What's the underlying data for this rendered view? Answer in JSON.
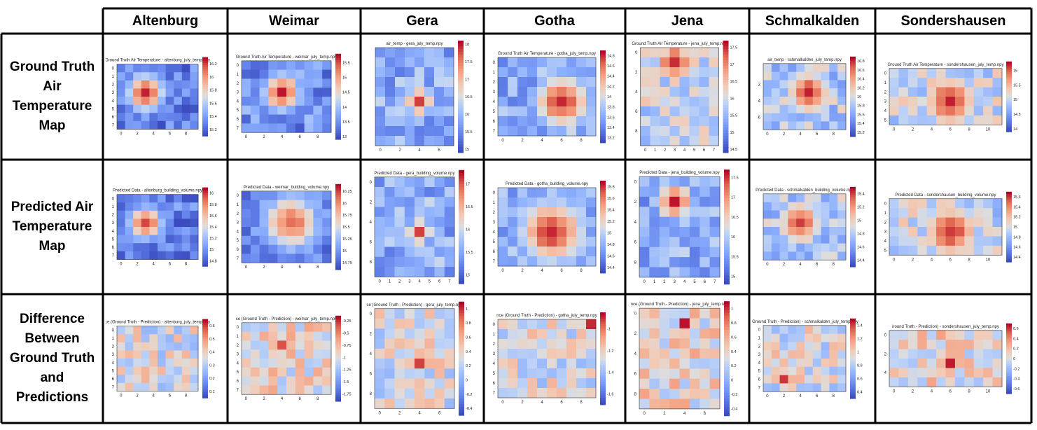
{
  "columns": [
    "Altenburg",
    "Weimar",
    "Gera",
    "Gotha",
    "Jena",
    "Schmalkalden",
    "Sondershausen"
  ],
  "rows": [
    {
      "label": "Ground Truth\nAir\nTemperature\nMap"
    },
    {
      "label": "Predicted Air\nTemperature\nMap"
    },
    {
      "label": "Difference\nBetween\nGround Truth\nand\nPredictions"
    }
  ],
  "colors": {
    "cold": "#3b4cc0",
    "mid": "#dddddd",
    "hot": "#b40426",
    "border": "#000000"
  },
  "chart_data": [
    {
      "type": "heatmap",
      "city": "Altenburg",
      "row": "gt",
      "title": "Ground Truth Air Temperature - altenburg_july_temp.npy",
      "nx": 10,
      "ny": 8,
      "xticks": [
        0,
        2,
        4,
        6,
        8
      ],
      "yticks": [
        0,
        1,
        2,
        3,
        4,
        5,
        6,
        7
      ],
      "cbar_ticks": [
        15.2,
        15.4,
        15.6,
        15.8,
        16.0,
        16.2
      ],
      "vmin": 15.1,
      "vmax": 16.3,
      "seed": 1,
      "hotspots": [
        [
          3,
          3,
          0.95,
          1.6
        ]
      ],
      "base": 0.12
    },
    {
      "type": "heatmap",
      "city": "Weimar",
      "row": "gt",
      "title": "Ground Truth Air Temperature - weimar_july_temp.npy",
      "nx": 10,
      "ny": 8,
      "xticks": [
        0,
        2,
        4,
        6,
        8
      ],
      "yticks": [
        0,
        1,
        2,
        3,
        4,
        5,
        6,
        7
      ],
      "cbar_ticks": [
        13.0,
        13.5,
        14.0,
        14.5,
        15.0,
        15.5
      ],
      "vmin": 12.9,
      "vmax": 15.8,
      "seed": 2,
      "hotspots": [
        [
          4,
          3,
          0.95,
          1.5
        ]
      ],
      "base": 0.2
    },
    {
      "type": "heatmap",
      "city": "Gera",
      "row": "gt",
      "title": "air_temp - gera_july_temp.npy",
      "nx": 8,
      "ny": 10,
      "xticks": [
        0,
        2,
        4,
        6
      ],
      "yticks": [],
      "cbar_ticks": [
        15.0,
        15.5,
        16.0,
        16.5,
        17.0,
        17.5,
        18.0
      ],
      "vmin": 14.9,
      "vmax": 18.1,
      "seed": 3,
      "hotspots": [
        [
          4,
          5,
          0.95,
          1.0
        ]
      ],
      "base": 0.3
    },
    {
      "type": "heatmap",
      "city": "Gotha",
      "row": "gt",
      "title": "Ground Truth Air Temperature - gotha_july_temp.npy",
      "nx": 10,
      "ny": 8,
      "xticks": [
        0,
        2,
        4,
        6,
        8
      ],
      "yticks": [
        0,
        1,
        2,
        3,
        4,
        5,
        6,
        7
      ],
      "cbar_ticks": [
        13.2,
        13.4,
        13.6,
        13.8,
        14.0,
        14.2,
        14.4,
        14.6,
        14.8
      ],
      "vmin": 13.1,
      "vmax": 14.9,
      "seed": 4,
      "hotspots": [
        [
          6,
          4,
          0.95,
          2.0
        ]
      ],
      "base": 0.3
    },
    {
      "type": "heatmap",
      "city": "Jena",
      "row": "gt",
      "title": "Ground Truth Air Temperature - jena_july_temp.npy",
      "nx": 8,
      "ny": 10,
      "xticks": [
        0,
        1,
        2,
        3,
        4,
        5,
        6,
        7
      ],
      "yticks": [
        0,
        2,
        4,
        6,
        8
      ],
      "cbar_ticks": [
        14.5,
        15.0,
        15.5,
        16.0,
        16.5,
        17.0,
        17.5
      ],
      "vmin": 14.4,
      "vmax": 17.7,
      "seed": 5,
      "hotspots": [
        [
          3,
          1,
          0.95,
          1.5
        ]
      ],
      "base": 0.45
    },
    {
      "type": "heatmap",
      "city": "Schmalkalden",
      "row": "gt",
      "title": "air_temp - schmalkalden_july_temp.npy",
      "nx": 10,
      "ny": 8,
      "xticks": [
        0,
        2,
        4,
        6,
        8
      ],
      "yticks": [
        2,
        4,
        6
      ],
      "cbar_ticks": [
        15.2,
        15.4,
        15.6,
        15.8,
        16.0,
        16.2,
        16.4,
        16.6,
        16.8
      ],
      "vmin": 15.1,
      "vmax": 16.9,
      "seed": 6,
      "hotspots": [
        [
          5,
          3,
          0.95,
          2.0
        ]
      ],
      "base": 0.4
    },
    {
      "type": "heatmap",
      "city": "Sondershausen",
      "row": "gt",
      "title": "Ground Truth Air Temperature - sondershausen_july_temp.npy",
      "nx": 12,
      "ny": 6,
      "xticks": [
        0,
        2,
        4,
        6,
        8,
        10
      ],
      "yticks": [
        0,
        1,
        2,
        3,
        4,
        5
      ],
      "cbar_ticks": [
        14.0,
        14.5,
        15.0,
        15.5,
        16.0
      ],
      "vmin": 13.9,
      "vmax": 16.3,
      "seed": 7,
      "hotspots": [
        [
          6,
          3,
          0.95,
          2.2
        ]
      ],
      "base": 0.45
    },
    {
      "type": "heatmap",
      "city": "Altenburg",
      "row": "pred",
      "title": "Predicted Data - altenburg_building_volume.npy",
      "nx": 10,
      "ny": 8,
      "xticks": [
        0,
        2,
        4,
        6,
        8
      ],
      "yticks": [
        0,
        1,
        2,
        3,
        4,
        5,
        6,
        7
      ],
      "cbar_ticks": [
        14.8,
        15.0,
        15.2,
        15.4,
        15.6,
        15.8,
        16.0
      ],
      "vmin": 14.7,
      "vmax": 16.1,
      "seed": 8,
      "hotspots": [
        [
          3,
          3,
          0.95,
          1.4
        ]
      ],
      "base": 0.15
    },
    {
      "type": "heatmap",
      "city": "Weimar",
      "row": "pred",
      "title": "Predicted Data - weimar_building_volume.npy",
      "nx": 10,
      "ny": 8,
      "xticks": [
        0,
        2,
        4,
        6,
        8
      ],
      "yticks": [
        0,
        1,
        2,
        3,
        4,
        5,
        6,
        7
      ],
      "cbar_ticks": [
        14.75,
        15.0,
        15.25,
        15.5,
        15.75,
        16.0,
        16.25
      ],
      "vmin": 14.6,
      "vmax": 16.4,
      "seed": 9,
      "hotspots": [
        [
          5,
          3,
          0.85,
          2.2
        ]
      ],
      "base": 0.15
    },
    {
      "type": "heatmap",
      "city": "Gera",
      "row": "pred",
      "title": "Predicted Data - gera_building_volume.npy",
      "nx": 8,
      "ny": 10,
      "xticks": [
        0,
        1,
        2,
        3,
        4,
        5,
        6,
        7
      ],
      "yticks": [
        0,
        2,
        4,
        6,
        8
      ],
      "cbar_ticks": [
        15.0,
        15.5,
        16.0,
        16.5,
        17.0
      ],
      "vmin": 14.8,
      "vmax": 17.3,
      "seed": 10,
      "hotspots": [
        [
          4,
          5,
          0.95,
          0.9
        ]
      ],
      "base": 0.3
    },
    {
      "type": "heatmap",
      "city": "Gotha",
      "row": "pred",
      "title": "Predicted Data - gotha_building_volume.npy",
      "nx": 10,
      "ny": 8,
      "xticks": [
        0,
        2,
        4,
        6,
        8
      ],
      "yticks": [
        0,
        1,
        2,
        3,
        4,
        5,
        6,
        7
      ],
      "cbar_ticks": [
        14.4,
        14.6,
        14.8,
        15.0,
        15.2,
        15.4,
        15.6,
        15.8
      ],
      "vmin": 14.3,
      "vmax": 15.9,
      "seed": 11,
      "hotspots": [
        [
          5,
          4,
          0.95,
          2.4
        ]
      ],
      "base": 0.3
    },
    {
      "type": "heatmap",
      "city": "Jena",
      "row": "pred",
      "title": "Predicted Data - jena_building_volume.npy",
      "nx": 8,
      "ny": 10,
      "xticks": [
        0,
        1,
        2,
        3,
        4,
        5,
        6,
        7
      ],
      "yticks": [
        0,
        2,
        4,
        6,
        8
      ],
      "cbar_ticks": [
        15.0,
        15.5,
        16.0,
        16.5,
        17.0,
        17.5
      ],
      "vmin": 14.8,
      "vmax": 17.7,
      "seed": 12,
      "hotspots": [
        [
          3,
          2,
          0.95,
          1.3
        ]
      ],
      "base": 0.3
    },
    {
      "type": "heatmap",
      "city": "Schmalkalden",
      "row": "pred",
      "title": "Predicted Data - schmalkalden_building_volume.npy",
      "nx": 10,
      "ny": 8,
      "xticks": [
        0,
        2,
        4,
        6,
        8
      ],
      "yticks": [],
      "cbar_ticks": [
        14.4,
        14.6,
        14.8,
        15.0,
        15.2,
        15.4
      ],
      "vmin": 14.3,
      "vmax": 15.5,
      "seed": 13,
      "hotspots": [
        [
          4,
          3,
          0.9,
          2.0
        ]
      ],
      "base": 0.4
    },
    {
      "type": "heatmap",
      "city": "Sondershausen",
      "row": "pred",
      "title": "Predicted Data - sondershausen_building_volume.npy",
      "nx": 12,
      "ny": 6,
      "xticks": [
        0,
        2,
        4,
        6,
        8,
        10
      ],
      "yticks": [
        0,
        1,
        2,
        3,
        4,
        5
      ],
      "cbar_ticks": [
        14.4,
        14.6,
        14.8,
        15.0,
        15.2,
        15.4,
        15.6
      ],
      "vmin": 14.3,
      "vmax": 15.7,
      "seed": 14,
      "hotspots": [
        [
          6,
          3,
          0.95,
          2.2
        ]
      ],
      "base": 0.45
    },
    {
      "type": "heatmap",
      "city": "Altenburg",
      "row": "diff",
      "title": "ce (Ground Truth - Prediction) - altenburg_july_temp.npy",
      "nx": 10,
      "ny": 8,
      "xticks": [
        0,
        2,
        4,
        6,
        8
      ],
      "yticks": [
        0,
        1,
        2,
        3,
        4,
        5,
        6,
        7
      ],
      "cbar_ticks": [
        0.1,
        0.2,
        0.3,
        0.4,
        0.5,
        0.6
      ],
      "vmin": 0.05,
      "vmax": 0.65,
      "seed": 15,
      "hotspots": [],
      "base": 0.5
    },
    {
      "type": "heatmap",
      "city": "Weimar",
      "row": "diff",
      "title": "ce (Ground Truth - Prediction) - weimar_july_temp.npy",
      "nx": 10,
      "ny": 8,
      "xticks": [
        0,
        2,
        4,
        6,
        8
      ],
      "yticks": [
        0,
        1,
        2,
        3,
        4,
        5,
        6,
        7
      ],
      "cbar_ticks": [
        -1.75,
        -1.5,
        -1.25,
        -1.0,
        -0.75,
        -0.5,
        -0.25
      ],
      "vmin": -1.9,
      "vmax": -0.15,
      "seed": 16,
      "hotspots": [
        [
          4,
          2,
          0.9,
          1.0
        ]
      ],
      "base": 0.55
    },
    {
      "type": "heatmap",
      "city": "Gera",
      "row": "diff",
      "title": "ce (Ground Truth - Prediction) - gera_july_temp.npy",
      "nx": 8,
      "ny": 10,
      "xticks": [
        0,
        2,
        4,
        6
      ],
      "yticks": [
        0,
        2,
        4,
        6,
        8
      ],
      "cbar_ticks": [
        -0.4,
        -0.2,
        0.0,
        0.2,
        0.4,
        0.6,
        0.8,
        1.0
      ],
      "vmin": -0.5,
      "vmax": 1.1,
      "seed": 17,
      "hotspots": [
        [
          4,
          5,
          0.95,
          0.8
        ]
      ],
      "base": 0.5
    },
    {
      "type": "heatmap",
      "city": "Gotha",
      "row": "diff",
      "title": "nce (Ground Truth - Prediction) - gotha_july_temp.npy",
      "nx": 10,
      "ny": 8,
      "xticks": [
        0,
        2,
        4,
        6,
        8
      ],
      "yticks": [
        0,
        1,
        2,
        3,
        4,
        5,
        6,
        7
      ],
      "cbar_ticks": [
        -1.6,
        -1.4,
        -1.2,
        -1.0
      ],
      "vmin": -1.7,
      "vmax": -0.85,
      "seed": 18,
      "hotspots": [
        [
          9,
          0,
          0.95,
          0.8
        ]
      ],
      "base": 0.5
    },
    {
      "type": "heatmap",
      "city": "Jena",
      "row": "diff",
      "title": "nce (Ground Truth - Prediction) - jena_july_temp.npy",
      "nx": 8,
      "ny": 10,
      "xticks": [
        0,
        2,
        4,
        6
      ],
      "yticks": [
        0,
        2,
        4,
        6,
        8
      ],
      "cbar_ticks": [
        -0.4,
        -0.2,
        0.0,
        0.2,
        0.4,
        0.6,
        0.8,
        1.0
      ],
      "vmin": -0.5,
      "vmax": 1.1,
      "seed": 19,
      "hotspots": [
        [
          4,
          1,
          0.95,
          0.8
        ]
      ],
      "base": 0.55
    },
    {
      "type": "heatmap",
      "city": "Schmalkalden",
      "row": "diff",
      "title": "(Ground Truth - Prediction) - schmalkalden_july_temp.npy",
      "nx": 10,
      "ny": 8,
      "xticks": [
        0,
        2,
        4,
        6,
        8
      ],
      "yticks": [
        0,
        1,
        2,
        3,
        4,
        5,
        6,
        7
      ],
      "cbar_ticks": [
        0.4,
        0.6,
        0.8,
        1.0,
        1.2,
        1.4
      ],
      "vmin": 0.3,
      "vmax": 1.5,
      "seed": 20,
      "hotspots": [
        [
          2,
          6,
          0.9,
          1.0
        ]
      ],
      "base": 0.5
    },
    {
      "type": "heatmap",
      "city": "Sondershausen",
      "row": "diff",
      "title": "iround Truth - Prediction) - sondershausen_july_temp.npy",
      "nx": 12,
      "ny": 6,
      "xticks": [
        0,
        2,
        4,
        6,
        8,
        10
      ],
      "yticks": [
        0,
        2,
        4
      ],
      "cbar_ticks": [
        -0.6,
        -0.4,
        -0.2,
        0.0,
        0.2,
        0.4,
        0.6
      ],
      "vmin": -0.7,
      "vmax": 0.7,
      "seed": 21,
      "hotspots": [
        [
          6,
          3,
          0.95,
          1.2
        ]
      ],
      "base": 0.55
    }
  ]
}
